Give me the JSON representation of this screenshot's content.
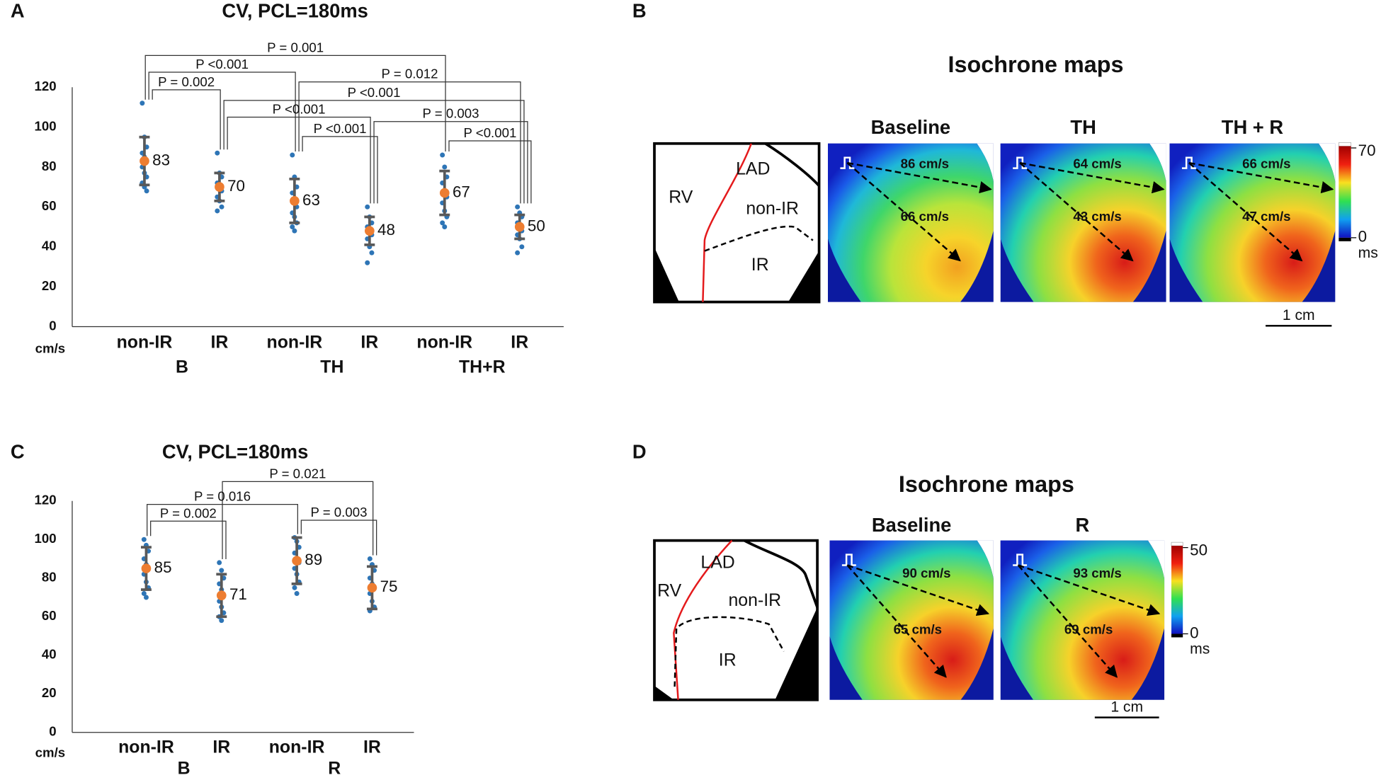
{
  "chart_data": [
    {
      "type": "dotplot",
      "panel": "A",
      "title": "CV, PCL=180ms",
      "y_label": "cm/s",
      "categories": [
        "non-IR",
        "IR",
        "non-IR",
        "IR",
        "non-IR",
        "IR"
      ],
      "groups": [
        "B",
        "TH",
        "TH+R"
      ],
      "means": [
        83,
        70,
        63,
        48,
        67,
        50
      ],
      "errors": [
        12,
        7,
        11,
        7,
        11,
        6
      ],
      "points": [
        [
          112,
          95,
          90,
          87,
          85,
          83,
          80,
          77,
          75,
          72,
          70,
          68
        ],
        [
          87,
          77,
          75,
          72,
          70,
          68,
          65,
          63,
          60,
          58
        ],
        [
          86,
          75,
          70,
          67,
          63,
          60,
          57,
          55,
          52,
          50,
          48
        ],
        [
          60,
          55,
          52,
          50,
          48,
          46,
          44,
          40,
          37,
          32
        ],
        [
          86,
          80,
          75,
          72,
          68,
          65,
          62,
          58,
          55,
          52,
          50
        ],
        [
          60,
          57,
          55,
          52,
          50,
          48,
          46,
          44,
          40,
          37
        ]
      ],
      "brackets": [
        {
          "pair": [
            0,
            4
          ],
          "label": "P = 0.001"
        },
        {
          "pair": [
            0,
            2
          ],
          "label": "P <0.001"
        },
        {
          "pair": [
            2,
            5
          ],
          "label": "P = 0.012"
        },
        {
          "pair": [
            0,
            1
          ],
          "label": "P = 0.002"
        },
        {
          "pair": [
            1,
            5
          ],
          "label": "P <0.001"
        },
        {
          "pair": [
            1,
            3
          ],
          "label": "P <0.001"
        },
        {
          "pair": [
            3,
            5
          ],
          "label": "P = 0.003"
        },
        {
          "pair": [
            2,
            3
          ],
          "label": "P <0.001"
        },
        {
          "pair": [
            4,
            5
          ],
          "label": "P <0.001"
        }
      ],
      "ylim": [
        0,
        120
      ],
      "yticks": [
        0,
        20,
        40,
        60,
        80,
        100,
        120
      ],
      "point_color": "#2e75b6",
      "mean_color": "#ed7d31",
      "error_color": "#595959"
    },
    {
      "type": "dotplot",
      "panel": "C",
      "title": "CV, PCL=180ms",
      "y_label": "cm/s",
      "categories": [
        "non-IR",
        "IR",
        "non-IR",
        "IR"
      ],
      "groups": [
        "B",
        "R"
      ],
      "means": [
        85,
        71,
        89,
        75
      ],
      "errors": [
        11,
        11,
        12,
        11
      ],
      "points": [
        [
          100,
          97,
          94,
          90,
          87,
          85,
          82,
          78,
          75,
          72,
          70
        ],
        [
          88,
          84,
          80,
          77,
          74,
          71,
          68,
          65,
          62,
          60,
          58
        ],
        [
          101,
          99,
          96,
          93,
          90,
          88,
          85,
          82,
          78,
          75,
          72
        ],
        [
          90,
          87,
          84,
          80,
          77,
          75,
          72,
          68,
          65,
          63
        ]
      ],
      "brackets": [
        {
          "pair": [
            1,
            3
          ],
          "label": "P = 0.021"
        },
        {
          "pair": [
            0,
            2
          ],
          "label": "P = 0.016"
        },
        {
          "pair": [
            0,
            1
          ],
          "label": "P = 0.002"
        },
        {
          "pair": [
            2,
            3
          ],
          "label": "P = 0.003"
        }
      ],
      "ylim": [
        0,
        120
      ],
      "yticks": [
        0,
        20,
        40,
        60,
        80,
        100,
        120
      ],
      "point_color": "#2e75b6",
      "mean_color": "#ed7d31",
      "error_color": "#595959"
    }
  ],
  "panels": [
    {
      "letter": "B",
      "title": "Isochrone maps",
      "schematic": {
        "labels": [
          "LAD",
          "RV",
          "non-IR",
          "IR"
        ]
      },
      "maps": [
        {
          "title": "Baseline",
          "speeds": [
            "86 cm/s",
            "66 cm/s"
          ]
        },
        {
          "title": "TH",
          "speeds": [
            "64 cm/s",
            "43 cm/s"
          ]
        },
        {
          "title": "TH + R",
          "speeds": [
            "66 cm/s",
            "47 cm/s"
          ]
        }
      ],
      "colorbar": {
        "max": 70,
        "min": 0,
        "unit": "ms"
      },
      "scale": "1 cm"
    },
    {
      "letter": "D",
      "title": "Isochrone maps",
      "schematic": {
        "labels": [
          "LAD",
          "RV",
          "non-IR",
          "IR"
        ]
      },
      "maps": [
        {
          "title": "Baseline",
          "speeds": [
            "90 cm/s",
            "65 cm/s"
          ]
        },
        {
          "title": "R",
          "speeds": [
            "93 cm/s",
            "69 cm/s"
          ]
        }
      ],
      "colorbar": {
        "max": 50,
        "min": 0,
        "unit": "ms"
      },
      "scale": "1 cm"
    }
  ]
}
